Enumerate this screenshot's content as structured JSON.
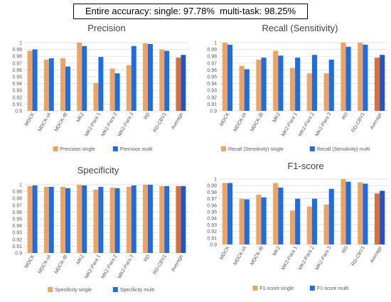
{
  "headline": "Entire accuracy: single: 97.78%  multi-task: 98.25%",
  "colors": {
    "single": "#F0A35E",
    "multi": "#1A6FE8",
    "avg_single": "#D9703A",
    "avg_multi": "#1E56C8",
    "grid": "#D9D9D9"
  },
  "chart_data": [
    {
      "type": "bar",
      "title": "Precision",
      "categories": [
        "MDCK",
        "MDCK-IA",
        "MDCK-IB",
        "MK2",
        "MK2-Para 1",
        "MK2-Para 2",
        "MK2-Para 3",
        "RD",
        "RD-CBV1",
        "Average"
      ],
      "series": [
        {
          "name": "Precision single",
          "values": [
            0.988,
            0.975,
            0.977,
            1.0,
            0.941,
            0.962,
            0.967,
            0.999,
            0.99,
            0.978
          ]
        },
        {
          "name": "Precision multi",
          "values": [
            0.99,
            0.977,
            0.965,
            0.995,
            0.979,
            0.955,
            0.995,
            0.998,
            0.988,
            0.982
          ]
        }
      ],
      "ylim": [
        0.9,
        1.0
      ],
      "yticks": [
        "0.9",
        "0.91",
        "0.92",
        "0.93",
        "0.94",
        "0.95",
        "0.96",
        "0.97",
        "0.98",
        "0.99",
        "1"
      ],
      "grid": true,
      "legend": "bottom"
    },
    {
      "type": "bar",
      "title": "Recall (Sensitivity)",
      "categories": [
        "MDCK",
        "MDCK-IA",
        "MDCK-IB",
        "MK2",
        "MK2-Para 1",
        "MK2-Para 2",
        "MK2-Para 3",
        "RD",
        "RD-CBV1",
        "Average"
      ],
      "series": [
        {
          "name": "Recall (Sensitivity) single",
          "values": [
            1.0,
            0.966,
            0.975,
            0.988,
            0.963,
            0.955,
            0.955,
            1.0,
            1.0,
            0.978
          ]
        },
        {
          "name": "Recall (Sensitivity) multi",
          "values": [
            0.997,
            0.961,
            0.978,
            0.981,
            0.978,
            0.982,
            0.975,
            0.994,
            0.997,
            0.982
          ]
        }
      ],
      "ylim": [
        0.9,
        1.0
      ],
      "yticks": [
        "0.9",
        "0.91",
        "0.92",
        "0.93",
        "0.94",
        "0.95",
        "0.96",
        "0.97",
        "0.98",
        "0.99",
        "1"
      ],
      "grid": true,
      "legend": "bottom"
    },
    {
      "type": "bar",
      "title": "Specificity",
      "categories": [
        "MDCK",
        "MDCK-IA",
        "MDCK-IB",
        "MK2",
        "MK2-Para 1",
        "MK2-Para 2",
        "MK2-Para 3",
        "RD",
        "RD-CBV1",
        "Average"
      ],
      "series": [
        {
          "name": "Specificity single",
          "values": [
            0.998,
            0.997,
            0.997,
            1.0,
            0.993,
            0.996,
            0.997,
            1.0,
            0.998,
            0.998
          ]
        },
        {
          "name": "Specificity multi",
          "values": [
            0.999,
            0.997,
            0.995,
            0.999,
            0.997,
            0.995,
            0.999,
            1.0,
            0.998,
            0.998
          ]
        }
      ],
      "ylim": [
        0.9,
        1.0
      ],
      "yticks": [
        "0.9",
        "0.91",
        "0.92",
        "0.93",
        "0.94",
        "0.95",
        "0.96",
        "0.97",
        "0.98",
        "0.99",
        "1"
      ],
      "grid": true,
      "legend": "bottom"
    },
    {
      "type": "bar",
      "title": "F1-score",
      "categories": [
        "MDCK",
        "MDCK-IA",
        "MDCK-IB",
        "MK2",
        "MK2-Para 1",
        "MK2-Para 2",
        "MK2-Para 3",
        "RD",
        "RD-CBV1",
        "Average"
      ],
      "series": [
        {
          "name": "F1-score single",
          "values": [
            0.994,
            0.97,
            0.976,
            0.994,
            0.952,
            0.958,
            0.961,
            1.0,
            0.995,
            0.978
          ]
        },
        {
          "name": "F1-score multi",
          "values": [
            0.994,
            0.969,
            0.972,
            0.987,
            0.97,
            0.97,
            0.985,
            0.996,
            0.993,
            0.982
          ]
        }
      ],
      "ylim": [
        0.9,
        1.0
      ],
      "yticks": [
        "0.9",
        "0.91",
        "0.92",
        "0.93",
        "0.94",
        "0.95",
        "0.96",
        "0.97",
        "0.98",
        "0.99",
        "1"
      ],
      "grid": true,
      "legend": "bottom"
    }
  ]
}
